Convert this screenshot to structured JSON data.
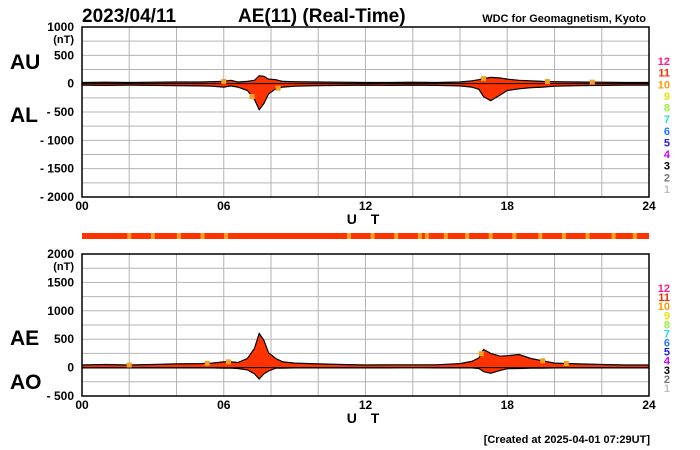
{
  "header": {
    "date": "2023/04/11",
    "title": "AE(11) (Real-Time)",
    "source": "WDC for Geomagnetism, Kyoto"
  },
  "footer": {
    "created": "[Created at 2025-04-01 07:29UT]"
  },
  "colors": {
    "fill": "#ff3300",
    "outline": "#000000",
    "grid": "#b4b4b4",
    "bar_main": "#ff3300",
    "bar_mark": "#f4a020"
  },
  "stations_scale": {
    "labels": [
      "12",
      "11",
      "10",
      "9",
      "8",
      "7",
      "6",
      "5",
      "4",
      "3",
      "2",
      "1"
    ],
    "colors": [
      "#ff1a8c",
      "#ff2a00",
      "#ff9a00",
      "#e6e600",
      "#99ee33",
      "#22dddd",
      "#2277ff",
      "#1a1aff",
      "#cc00ff",
      "#000000",
      "#777777",
      "#c0c0c0"
    ]
  },
  "station_bar": {
    "marks": [
      2.0,
      3.0,
      4.1,
      5.1,
      6.1,
      11.3,
      12.3,
      13.3,
      14.3,
      14.6,
      15.4,
      16.3,
      17.3,
      18.3,
      19.4,
      20.4,
      21.4,
      22.5,
      23.4
    ]
  },
  "chart_data": [
    {
      "type": "area",
      "panel": "AU/AL",
      "labels": {
        "upper": "AU",
        "lower": "AL"
      },
      "ylabel": "(nT)",
      "xlabel": "U T",
      "ylim": [
        -2000,
        1000
      ],
      "yticks": [
        1000,
        500,
        0,
        -500,
        -1000,
        -1500,
        -2000
      ],
      "ytick_labels": [
        "1000",
        "500",
        "0",
        "- 500",
        "- 1000",
        "- 1500",
        "- 2000"
      ],
      "xlim": [
        0,
        24
      ],
      "xticks": [
        0,
        6,
        12,
        18,
        24
      ],
      "xtick_labels": [
        "00",
        "06",
        "12",
        "18",
        "24"
      ],
      "x": [
        0,
        1,
        2,
        3,
        4,
        5,
        5.5,
        6,
        6.3,
        6.6,
        7,
        7.3,
        7.5,
        7.7,
        7.9,
        8.2,
        8.5,
        9,
        10,
        11,
        12,
        13,
        14,
        15,
        16,
        16.5,
        16.8,
        17,
        17.3,
        17.7,
        18,
        18.5,
        19,
        19.5,
        20,
        21,
        22,
        23,
        24
      ],
      "series": [
        {
          "name": "AU",
          "values": [
            20,
            25,
            20,
            25,
            30,
            30,
            35,
            40,
            60,
            30,
            40,
            60,
            140,
            130,
            80,
            70,
            40,
            35,
            30,
            25,
            20,
            20,
            25,
            20,
            30,
            50,
            70,
            90,
            110,
            100,
            80,
            60,
            50,
            40,
            35,
            30,
            25,
            20,
            20
          ]
        },
        {
          "name": "AL",
          "values": [
            -25,
            -30,
            -25,
            -30,
            -35,
            -40,
            -45,
            -60,
            -40,
            -60,
            -120,
            -280,
            -460,
            -350,
            -180,
            -90,
            -60,
            -45,
            -35,
            -30,
            -25,
            -30,
            -25,
            -30,
            -40,
            -60,
            -100,
            -230,
            -300,
            -200,
            -120,
            -90,
            -70,
            -60,
            -45,
            -35,
            -30,
            -25,
            -25
          ]
        }
      ],
      "markers": {
        "AU": [
          6.0,
          17.0,
          19.7,
          21.6
        ],
        "AL": [
          7.2,
          8.3
        ]
      }
    },
    {
      "type": "area",
      "panel": "AE/AO",
      "labels": {
        "upper": "AE",
        "lower": "AO"
      },
      "ylabel": "(nT)",
      "xlabel": "U T",
      "ylim": [
        -500,
        2000
      ],
      "yticks": [
        2000,
        1500,
        1000,
        500,
        0,
        -500
      ],
      "ytick_labels": [
        "2000",
        "1500",
        "1000",
        "500",
        "0",
        "- 500"
      ],
      "xlim": [
        0,
        24
      ],
      "xticks": [
        0,
        6,
        12,
        18,
        24
      ],
      "xtick_labels": [
        "00",
        "06",
        "12",
        "18",
        "24"
      ],
      "x": [
        0,
        1,
        2,
        3,
        4,
        5,
        5.5,
        6,
        6.3,
        6.6,
        7,
        7.3,
        7.5,
        7.7,
        7.9,
        8.2,
        8.5,
        9,
        10,
        11,
        12,
        13,
        14,
        15,
        16,
        16.5,
        16.8,
        17,
        17.3,
        17.7,
        18,
        18.5,
        19,
        19.5,
        20,
        21,
        22,
        23,
        24
      ],
      "series": [
        {
          "name": "AE",
          "values": [
            45,
            55,
            45,
            55,
            65,
            70,
            80,
            100,
            100,
            90,
            160,
            340,
            600,
            480,
            260,
            160,
            100,
            80,
            65,
            55,
            45,
            50,
            50,
            50,
            70,
            110,
            170,
            320,
            250,
            200,
            210,
            230,
            160,
            120,
            80,
            65,
            55,
            45,
            45
          ]
        },
        {
          "name": "AO",
          "values": [
            -5,
            -5,
            -5,
            -5,
            -5,
            -5,
            -5,
            -10,
            -10,
            -15,
            -40,
            -110,
            -200,
            -110,
            -60,
            -10,
            -10,
            -5,
            -5,
            -5,
            -5,
            -5,
            0,
            -5,
            -5,
            -5,
            -15,
            -70,
            -100,
            -50,
            -20,
            -15,
            -10,
            -10,
            -5,
            -5,
            -5,
            -5,
            -5
          ]
        }
      ],
      "markers": {
        "AE": [
          2.0,
          5.3,
          6.2,
          16.9,
          19.5,
          20.5
        ]
      }
    }
  ]
}
